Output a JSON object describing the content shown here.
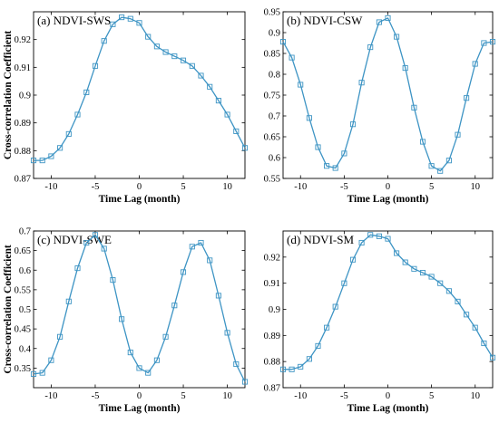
{
  "style": {
    "line_color": "#3d94c4",
    "axis_color": "#000000",
    "background": "#ffffff"
  },
  "chart_data": [
    {
      "type": "line",
      "title": "(a) NDVI-SWS",
      "xlabel": "Time Lag (month)",
      "ylabel": "Cross-correlation Coefficient",
      "xlim": [
        -12,
        12
      ],
      "ylim": [
        0.87,
        0.93
      ],
      "xticks": [
        -10,
        -5,
        0,
        5,
        10
      ],
      "xtick_labels": [
        "-10",
        "-5",
        "0",
        "5",
        "10"
      ],
      "yticks": [
        0.87,
        0.88,
        0.89,
        0.9,
        0.91,
        0.92
      ],
      "ytick_labels": [
        "0.87",
        "0.88",
        "0.89",
        "0.9",
        "0.91",
        "0.92"
      ],
      "marker": "square",
      "grid": false,
      "series": [
        {
          "x": [
            -12,
            -11,
            -10,
            -9,
            -8,
            -7,
            -6,
            -5,
            -4,
            -3,
            -2,
            -1,
            0,
            1,
            2,
            3,
            4,
            5,
            6,
            7,
            8,
            9,
            10,
            11,
            12
          ],
          "values": [
            0.8765,
            0.8765,
            0.878,
            0.881,
            0.886,
            0.893,
            0.901,
            0.9105,
            0.9195,
            0.9255,
            0.928,
            0.9275,
            0.926,
            0.921,
            0.9175,
            0.9155,
            0.914,
            0.9125,
            0.9105,
            0.907,
            0.903,
            0.898,
            0.893,
            0.887,
            0.881
          ]
        }
      ]
    },
    {
      "type": "line",
      "title": "(b) NDVI-CSW",
      "xlabel": "Time Lag (month)",
      "ylabel": "",
      "xlim": [
        -12,
        12
      ],
      "ylim": [
        0.55,
        0.95
      ],
      "xticks": [
        -10,
        -5,
        0,
        5,
        10
      ],
      "xtick_labels": [
        "-10",
        "-5",
        "0",
        "5",
        "10"
      ],
      "yticks": [
        0.55,
        0.6,
        0.65,
        0.7,
        0.75,
        0.8,
        0.85,
        0.9,
        0.95
      ],
      "ytick_labels": [
        "0.55",
        "0.6",
        "0.65",
        "0.7",
        "0.75",
        "0.8",
        "0.85",
        "0.9",
        "0.95"
      ],
      "marker": "square",
      "grid": false,
      "series": [
        {
          "x": [
            -12,
            -11,
            -10,
            -9,
            -8,
            -7,
            -6,
            -5,
            -4,
            -3,
            -2,
            -1,
            0,
            1,
            2,
            3,
            4,
            5,
            6,
            7,
            8,
            9,
            10,
            11,
            12
          ],
          "values": [
            0.878,
            0.84,
            0.775,
            0.695,
            0.625,
            0.58,
            0.575,
            0.61,
            0.68,
            0.78,
            0.865,
            0.925,
            0.935,
            0.89,
            0.815,
            0.72,
            0.638,
            0.58,
            0.568,
            0.593,
            0.655,
            0.743,
            0.825,
            0.875,
            0.878
          ]
        }
      ]
    },
    {
      "type": "line",
      "title": "(c) NDVI-SWE",
      "xlabel": "Time Lag (month)",
      "ylabel": "Cross-correlation Coefficient",
      "xlim": [
        -12,
        12
      ],
      "ylim": [
        0.3,
        0.7
      ],
      "xticks": [
        -10,
        -5,
        0,
        5,
        10
      ],
      "xtick_labels": [
        "-10",
        "-5",
        "0",
        "5",
        "10"
      ],
      "yticks": [
        0.35,
        0.4,
        0.45,
        0.5,
        0.55,
        0.6,
        0.65,
        0.7
      ],
      "ytick_labels": [
        "0.35",
        "0.4",
        "0.45",
        "0.5",
        "0.55",
        "0.6",
        "0.65",
        "0.7"
      ],
      "marker": "square",
      "grid": false,
      "series": [
        {
          "x": [
            -12,
            -11,
            -10,
            -9,
            -8,
            -7,
            -6,
            -5,
            -4,
            -3,
            -2,
            -1,
            0,
            1,
            2,
            3,
            4,
            5,
            6,
            7,
            8,
            9,
            10,
            11,
            12
          ],
          "values": [
            0.335,
            0.338,
            0.37,
            0.43,
            0.52,
            0.605,
            0.67,
            0.69,
            0.655,
            0.575,
            0.475,
            0.39,
            0.35,
            0.338,
            0.37,
            0.43,
            0.51,
            0.595,
            0.66,
            0.67,
            0.625,
            0.535,
            0.44,
            0.36,
            0.315
          ]
        }
      ]
    },
    {
      "type": "line",
      "title": "(d) NDVI-SM",
      "xlabel": "Time Lag (month)",
      "ylabel": "",
      "xlim": [
        -12,
        12
      ],
      "ylim": [
        0.87,
        0.93
      ],
      "xticks": [
        -10,
        -5,
        0,
        5,
        10
      ],
      "xtick_labels": [
        "-10",
        "-5",
        "0",
        "5",
        "10"
      ],
      "yticks": [
        0.87,
        0.88,
        0.89,
        0.9,
        0.91,
        0.92
      ],
      "ytick_labels": [
        "0.87",
        "0.88",
        "0.89",
        "0.9",
        "0.91",
        "0.92"
      ],
      "marker": "square",
      "grid": false,
      "series": [
        {
          "x": [
            -12,
            -11,
            -10,
            -9,
            -8,
            -7,
            -6,
            -5,
            -4,
            -3,
            -2,
            -1,
            0,
            1,
            2,
            3,
            4,
            5,
            6,
            7,
            8,
            9,
            10,
            11,
            12
          ],
          "values": [
            0.877,
            0.877,
            0.878,
            0.881,
            0.886,
            0.893,
            0.901,
            0.91,
            0.919,
            0.9255,
            0.9285,
            0.928,
            0.927,
            0.9215,
            0.918,
            0.9155,
            0.914,
            0.9125,
            0.91,
            0.907,
            0.903,
            0.898,
            0.893,
            0.887,
            0.8815
          ]
        }
      ]
    }
  ]
}
